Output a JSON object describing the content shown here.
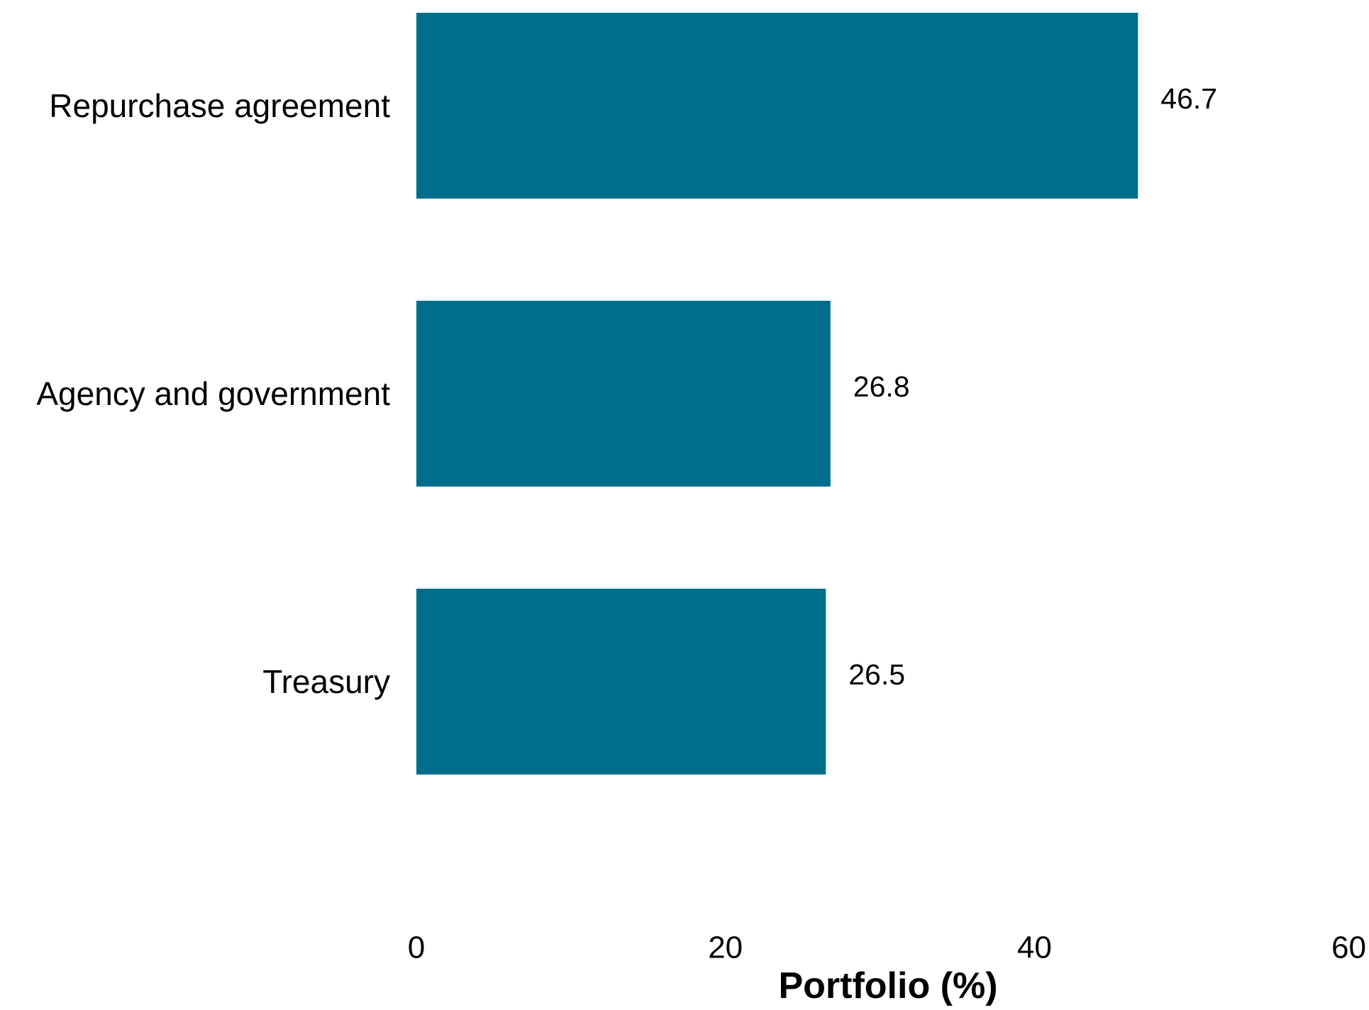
{
  "chart_data": {
    "type": "bar",
    "orientation": "horizontal",
    "categories": [
      "Repurchase agreement",
      "Agency and government",
      "Treasury"
    ],
    "values": [
      46.7,
      26.8,
      26.5
    ],
    "value_labels": [
      "46.7",
      "26.8",
      "26.5"
    ],
    "title": "",
    "xlabel": "Portfolio (%)",
    "ylabel": "",
    "xlim": [
      0,
      60
    ],
    "x_ticks": [
      0,
      20,
      40,
      60
    ],
    "x_tick_labels": [
      "0",
      "20",
      "40",
      "60"
    ],
    "grid": false,
    "legend": "none",
    "bar_color": "#006E8A"
  }
}
